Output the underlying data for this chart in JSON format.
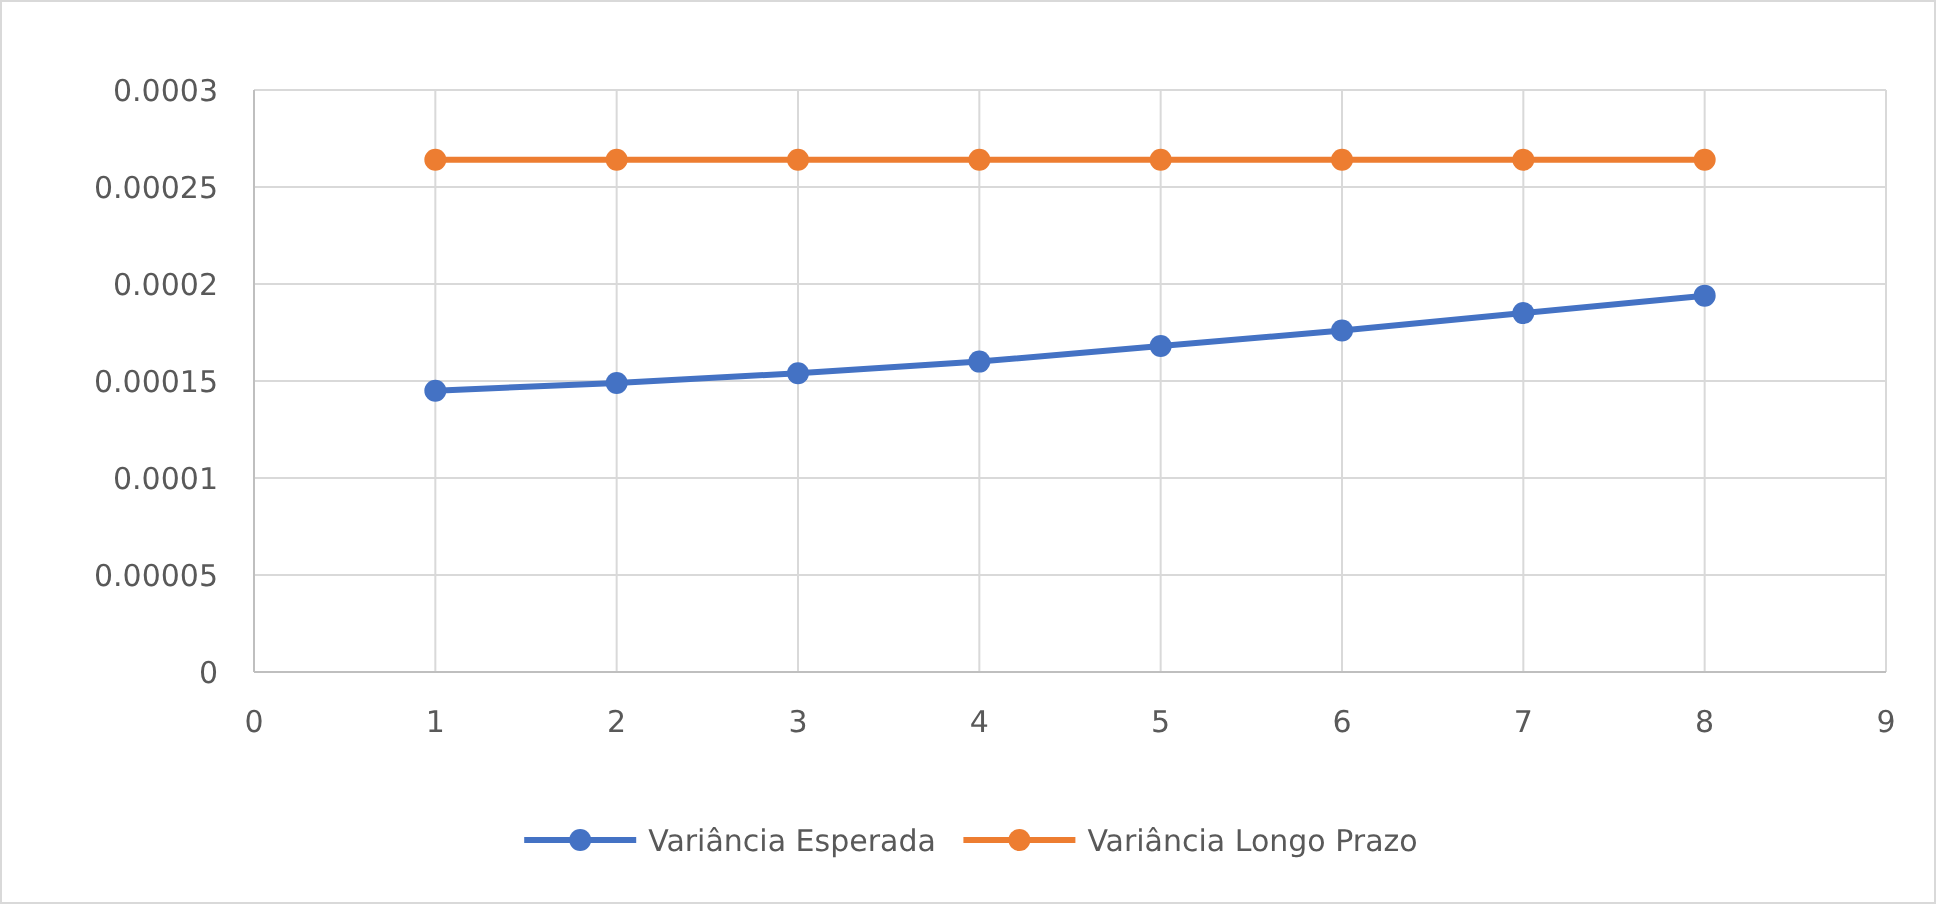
{
  "chart_data": {
    "type": "line",
    "x": [
      1,
      2,
      3,
      4,
      5,
      6,
      7,
      8
    ],
    "series": [
      {
        "name": "Variância Esperada",
        "color": "#4472c4",
        "values": [
          0.000145,
          0.000149,
          0.000154,
          0.00016,
          0.000168,
          0.000176,
          0.000185,
          0.000194
        ]
      },
      {
        "name": "Variância Longo Prazo",
        "color": "#ed7d31",
        "values": [
          0.000264,
          0.000264,
          0.000264,
          0.000264,
          0.000264,
          0.000264,
          0.000264,
          0.000264
        ]
      }
    ],
    "xlim": [
      0,
      9
    ],
    "xticks": [
      0,
      1,
      2,
      3,
      4,
      5,
      6,
      7,
      8,
      9
    ],
    "ylim": [
      0,
      0.0003
    ],
    "yticks": [
      {
        "value": 0,
        "label": "0"
      },
      {
        "value": 5e-05,
        "label": "0.00005"
      },
      {
        "value": 0.0001,
        "label": "0.0001"
      },
      {
        "value": 0.00015,
        "label": "0.00015"
      },
      {
        "value": 0.0002,
        "label": "0.0002"
      },
      {
        "value": 0.00025,
        "label": "0.00025"
      },
      {
        "value": 0.0003,
        "label": "0.0003"
      }
    ],
    "grid": true,
    "legend": "bottom",
    "marker": "circle",
    "line_style": "solid"
  }
}
